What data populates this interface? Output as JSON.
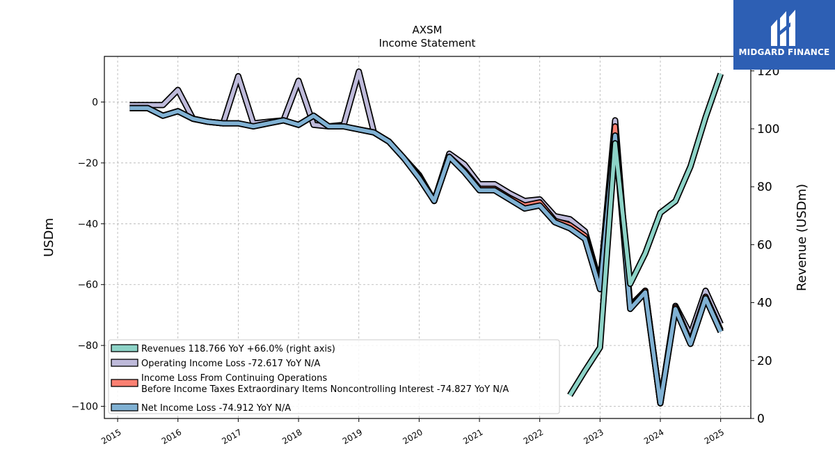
{
  "branding": {
    "logo_text": "MIDGARD FINANCE"
  },
  "colors": {
    "revenues": "#8dd3c7",
    "operating_income_loss": "#bebada",
    "income_loss_continuing": "#fb8072",
    "net_income_loss": "#80b1d3",
    "grid": "#b0b0b0",
    "logo_bg": "#2d5fb4"
  },
  "chart_data": {
    "type": "line",
    "title": "AXSM",
    "subtitle": "Income Statement",
    "ylabel": "USDm",
    "y2label": "Revenue (USDm)",
    "ylim": [
      -104,
      15
    ],
    "y2lim": [
      0,
      125
    ],
    "yticks": [
      0,
      -20,
      -40,
      -60,
      -80,
      -100
    ],
    "ytick_labels": [
      "0",
      "−20",
      "−40",
      "−60",
      "−80",
      "−100"
    ],
    "y2ticks": [
      0,
      20,
      40,
      60,
      80,
      100,
      120
    ],
    "y2tick_labels": [
      "0",
      "20",
      "40",
      "60",
      "80",
      "100",
      "120"
    ],
    "xlim": [
      2014.78,
      2025.5
    ],
    "xticks": [
      2015,
      2016,
      2017,
      2018,
      2019,
      2020,
      2021,
      2022,
      2023,
      2024,
      2025
    ],
    "xtick_labels": [
      "2015",
      "2016",
      "2017",
      "2018",
      "2019",
      "2020",
      "2021",
      "2022",
      "2023",
      "2024",
      "2025"
    ],
    "grid": true,
    "legend_position": "lower-left",
    "series": [
      {
        "key": "operating_income_loss",
        "name": "Operating Income Loss  -72.617 YoY N/A",
        "axis": "left",
        "points": [
          [
            2015.2,
            -1.0
          ],
          [
            2015.5,
            -1.0
          ],
          [
            2015.75,
            -1.0
          ],
          [
            2016.0,
            4.0
          ],
          [
            2016.25,
            -5.5
          ],
          [
            2016.5,
            -6.5
          ],
          [
            2016.75,
            -7.0
          ],
          [
            2017.0,
            8.5
          ],
          [
            2017.25,
            -7.0
          ],
          [
            2017.5,
            -6.5
          ],
          [
            2017.75,
            -6.0
          ],
          [
            2018.0,
            7.0
          ],
          [
            2018.25,
            -7.5
          ],
          [
            2018.5,
            -8.0
          ],
          [
            2018.75,
            -7.5
          ],
          [
            2019.0,
            10.0
          ],
          [
            2019.25,
            -10.0
          ],
          [
            2019.5,
            -13.0
          ],
          [
            2019.75,
            -18.5
          ],
          [
            2020.0,
            -24.0
          ],
          [
            2020.25,
            -32.5
          ],
          [
            2020.5,
            -17.0
          ],
          [
            2020.75,
            -20.5
          ],
          [
            2021.0,
            -27.0
          ],
          [
            2021.25,
            -27.0
          ],
          [
            2021.5,
            -30.0
          ],
          [
            2021.75,
            -32.5
          ],
          [
            2022.0,
            -32.0
          ],
          [
            2022.25,
            -37.5
          ],
          [
            2022.5,
            -38.5
          ],
          [
            2022.75,
            -42.5
          ],
          [
            2023.0,
            -60.0
          ],
          [
            2023.25,
            -6.0
          ],
          [
            2023.5,
            -67.0
          ],
          [
            2023.75,
            -62.0
          ],
          [
            2024.0,
            -99.0
          ],
          [
            2024.25,
            -67.0
          ],
          [
            2024.5,
            -76.5
          ],
          [
            2024.75,
            -62.0
          ],
          [
            2025.0,
            -73.0
          ]
        ]
      },
      {
        "key": "income_loss_continuing",
        "name": "Income Loss From Continuing Operations\nBefore Income Taxes Extraordinary Items Noncontrolling Interest  -74.827 YoY N/A",
        "axis": "left",
        "points": [
          [
            2015.2,
            -2.0
          ],
          [
            2015.5,
            -2.0
          ],
          [
            2015.75,
            -4.5
          ],
          [
            2016.0,
            -3.0
          ],
          [
            2016.25,
            -5.5
          ],
          [
            2016.5,
            -6.5
          ],
          [
            2016.75,
            -7.0
          ],
          [
            2017.0,
            -7.0
          ],
          [
            2017.25,
            -8.0
          ],
          [
            2017.5,
            -7.0
          ],
          [
            2017.75,
            -6.0
          ],
          [
            2018.0,
            -7.5
          ],
          [
            2018.25,
            -4.5
          ],
          [
            2018.5,
            -8.0
          ],
          [
            2018.75,
            -8.0
          ],
          [
            2019.0,
            -9.0
          ],
          [
            2019.25,
            -10.0
          ],
          [
            2019.5,
            -13.0
          ],
          [
            2019.75,
            -18.5
          ],
          [
            2020.0,
            -24.5
          ],
          [
            2020.25,
            -32.5
          ],
          [
            2020.5,
            -18.0
          ],
          [
            2020.75,
            -22.5
          ],
          [
            2021.0,
            -28.5
          ],
          [
            2021.25,
            -28.5
          ],
          [
            2021.5,
            -31.5
          ],
          [
            2021.75,
            -34.0
          ],
          [
            2022.0,
            -33.0
          ],
          [
            2022.25,
            -39.0
          ],
          [
            2022.5,
            -40.5
          ],
          [
            2022.75,
            -44.0
          ],
          [
            2023.0,
            -60.5
          ],
          [
            2023.25,
            -8.0
          ],
          [
            2023.5,
            -67.5
          ],
          [
            2023.75,
            -62.0
          ],
          [
            2024.0,
            -99.0
          ],
          [
            2024.25,
            -67.5
          ],
          [
            2024.5,
            -79.0
          ],
          [
            2024.75,
            -64.0
          ],
          [
            2025.0,
            -75.0
          ]
        ]
      },
      {
        "key": "net_income_loss",
        "name": "Net Income Loss  -74.912 YoY N/A",
        "axis": "left",
        "points": [
          [
            2015.2,
            -2.0
          ],
          [
            2015.5,
            -2.0
          ],
          [
            2015.75,
            -4.5
          ],
          [
            2016.0,
            -3.0
          ],
          [
            2016.25,
            -5.5
          ],
          [
            2016.5,
            -6.5
          ],
          [
            2016.75,
            -7.0
          ],
          [
            2017.0,
            -7.0
          ],
          [
            2017.25,
            -8.0
          ],
          [
            2017.5,
            -7.0
          ],
          [
            2017.75,
            -6.0
          ],
          [
            2018.0,
            -7.5
          ],
          [
            2018.25,
            -4.5
          ],
          [
            2018.5,
            -8.0
          ],
          [
            2018.75,
            -8.0
          ],
          [
            2019.0,
            -9.0
          ],
          [
            2019.25,
            -10.0
          ],
          [
            2019.5,
            -13.0
          ],
          [
            2019.75,
            -18.5
          ],
          [
            2020.0,
            -25.0
          ],
          [
            2020.25,
            -32.5
          ],
          [
            2020.5,
            -18.0
          ],
          [
            2020.75,
            -23.0
          ],
          [
            2021.0,
            -29.0
          ],
          [
            2021.25,
            -29.0
          ],
          [
            2021.5,
            -32.0
          ],
          [
            2021.75,
            -35.0
          ],
          [
            2022.0,
            -34.0
          ],
          [
            2022.25,
            -39.5
          ],
          [
            2022.5,
            -41.5
          ],
          [
            2022.75,
            -45.0
          ],
          [
            2023.0,
            -61.5
          ],
          [
            2023.25,
            -11.0
          ],
          [
            2023.5,
            -68.0
          ],
          [
            2023.75,
            -62.5
          ],
          [
            2024.0,
            -99.0
          ],
          [
            2024.25,
            -68.0
          ],
          [
            2024.5,
            -79.5
          ],
          [
            2024.75,
            -64.5
          ],
          [
            2025.0,
            -75.5
          ]
        ]
      },
      {
        "key": "revenues",
        "name": "Revenues  118.766 YoY +66.0% (right axis)",
        "axis": "right",
        "points": [
          [
            2022.5,
            8.0
          ],
          [
            2022.75,
            16.5
          ],
          [
            2023.0,
            24.5
          ],
          [
            2023.25,
            95.0
          ],
          [
            2023.5,
            46.5
          ],
          [
            2023.75,
            57.0
          ],
          [
            2024.0,
            71.0
          ],
          [
            2024.25,
            75.0
          ],
          [
            2024.5,
            87.0
          ],
          [
            2024.75,
            104.0
          ],
          [
            2025.0,
            119.0
          ]
        ]
      }
    ]
  }
}
